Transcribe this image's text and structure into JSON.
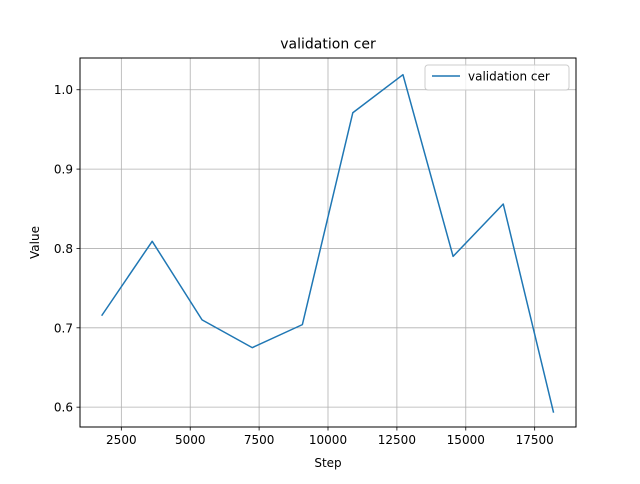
{
  "chart_data": {
    "type": "line",
    "title": "validation cer",
    "xlabel": "Step",
    "ylabel": "Value",
    "xlim": [
      1000,
      19000
    ],
    "ylim": [
      0.575,
      1.04
    ],
    "xticks": [
      2500,
      5000,
      7500,
      10000,
      12500,
      15000,
      17500
    ],
    "xtick_labels": [
      "2500",
      "5000",
      "7500",
      "10000",
      "12500",
      "15000",
      "17500"
    ],
    "yticks": [
      0.6,
      0.7,
      0.8,
      0.9,
      1.0
    ],
    "ytick_labels": [
      "0.6",
      "0.7",
      "0.8",
      "0.9",
      "1.0"
    ],
    "grid": true,
    "legend_position": "top-right",
    "series": [
      {
        "name": "validation cer",
        "color": "#1f77b4",
        "x": [
          1800,
          3620,
          5430,
          7250,
          9070,
          10900,
          12720,
          14540,
          16360,
          18180
        ],
        "y": [
          0.716,
          0.809,
          0.71,
          0.675,
          0.704,
          0.971,
          1.019,
          0.79,
          0.856,
          0.594
        ]
      }
    ]
  }
}
